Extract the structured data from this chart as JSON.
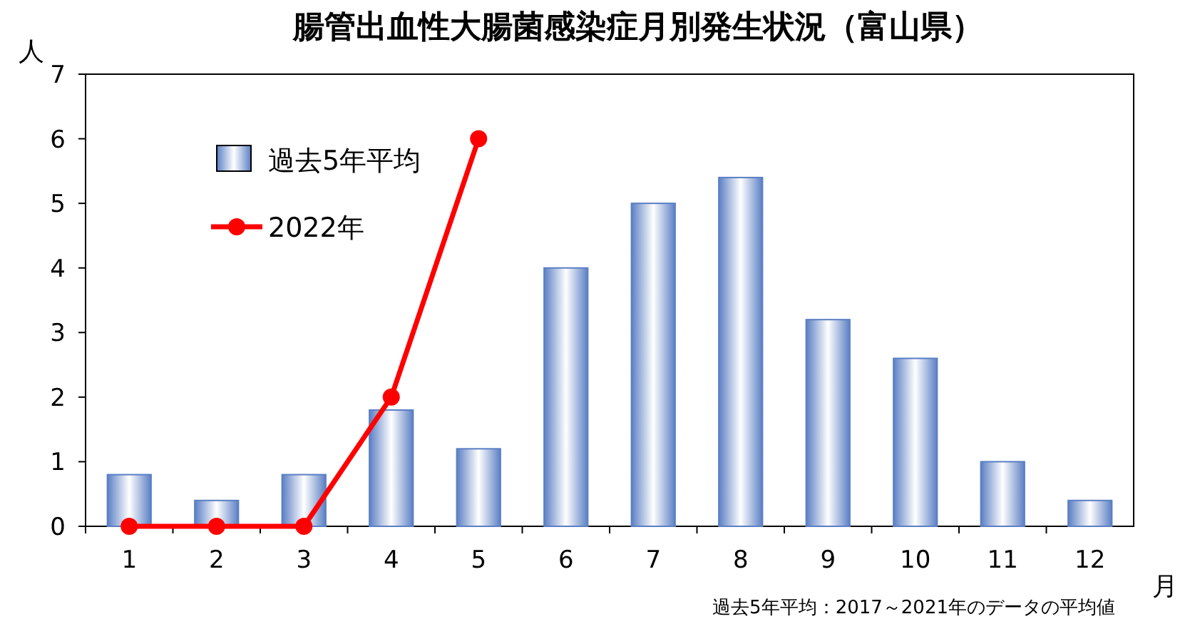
{
  "chart_data": {
    "type": "bar",
    "title": "腸管出血性大腸菌感染症月別発生状況（富山県）",
    "ylabel": "人",
    "xlabel": "月",
    "categories": [
      "1",
      "2",
      "3",
      "4",
      "5",
      "6",
      "7",
      "8",
      "9",
      "10",
      "11",
      "12"
    ],
    "ylim": [
      0,
      7
    ],
    "yticks": [
      0,
      1,
      2,
      3,
      4,
      5,
      6,
      7
    ],
    "legend": "top left",
    "grid": false,
    "marker": "circle",
    "line_style": "solid",
    "series": [
      {
        "name": "過去5年平均",
        "color": "#5b7fc4",
        "values": [
          0.8,
          0.4,
          0.8,
          1.8,
          1.2,
          4,
          5,
          5.4,
          3.2,
          2.6,
          1,
          0.4
        ]
      },
      {
        "name": "2022年",
        "type": "line",
        "color": "#ff0000",
        "values": [
          0,
          0,
          0,
          2,
          6,
          null,
          null,
          null,
          null,
          null,
          null,
          null
        ]
      }
    ],
    "annotations": [
      "過去5年平均：2017～2021年のデータの平均値"
    ]
  }
}
